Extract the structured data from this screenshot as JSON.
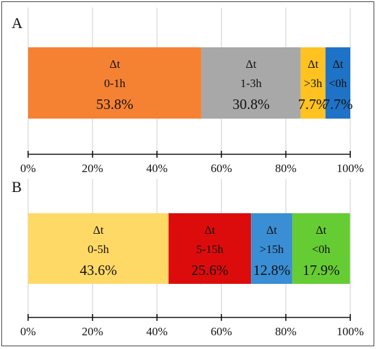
{
  "chart_data": [
    {
      "type": "bar",
      "panel": "A",
      "orientation": "horizontal-stacked",
      "xlim": [
        0,
        100
      ],
      "grid": true,
      "ticks": [
        "0%",
        "20%",
        "40%",
        "60%",
        "80%",
        "100%"
      ],
      "series": [
        {
          "name": "Δt",
          "range": "0-1h",
          "value": 53.8,
          "label": "53.8%",
          "color": "#f58233"
        },
        {
          "name": "Δt",
          "range": "1-3h",
          "value": 30.8,
          "label": "30.8%",
          "color": "#a8a8a8"
        },
        {
          "name": "Δt",
          "range": ">3h",
          "value": 7.7,
          "label": "7.7%",
          "color": "#ffc220"
        },
        {
          "name": "Δt",
          "range": "<0h",
          "value": 7.7,
          "label": "7.7%",
          "color": "#1f73c6"
        }
      ]
    },
    {
      "type": "bar",
      "panel": "B",
      "orientation": "horizontal-stacked",
      "xlim": [
        0,
        100
      ],
      "grid": true,
      "ticks": [
        "0%",
        "20%",
        "40%",
        "60%",
        "80%",
        "100%"
      ],
      "series": [
        {
          "name": "Δt",
          "range": "0-5h",
          "value": 43.6,
          "label": "43.6%",
          "color": "#ffd966"
        },
        {
          "name": "Δt",
          "range": "5-15h",
          "value": 25.6,
          "label": "25.6%",
          "color": "#dd0c0c"
        },
        {
          "name": "Δt",
          "range": ">15h",
          "value": 12.8,
          "label": "12.8%",
          "color": "#3a8ed4"
        },
        {
          "name": "Δt",
          "range": "<0h",
          "value": 17.9,
          "label": "17.9%",
          "color": "#66cc33"
        }
      ]
    }
  ]
}
